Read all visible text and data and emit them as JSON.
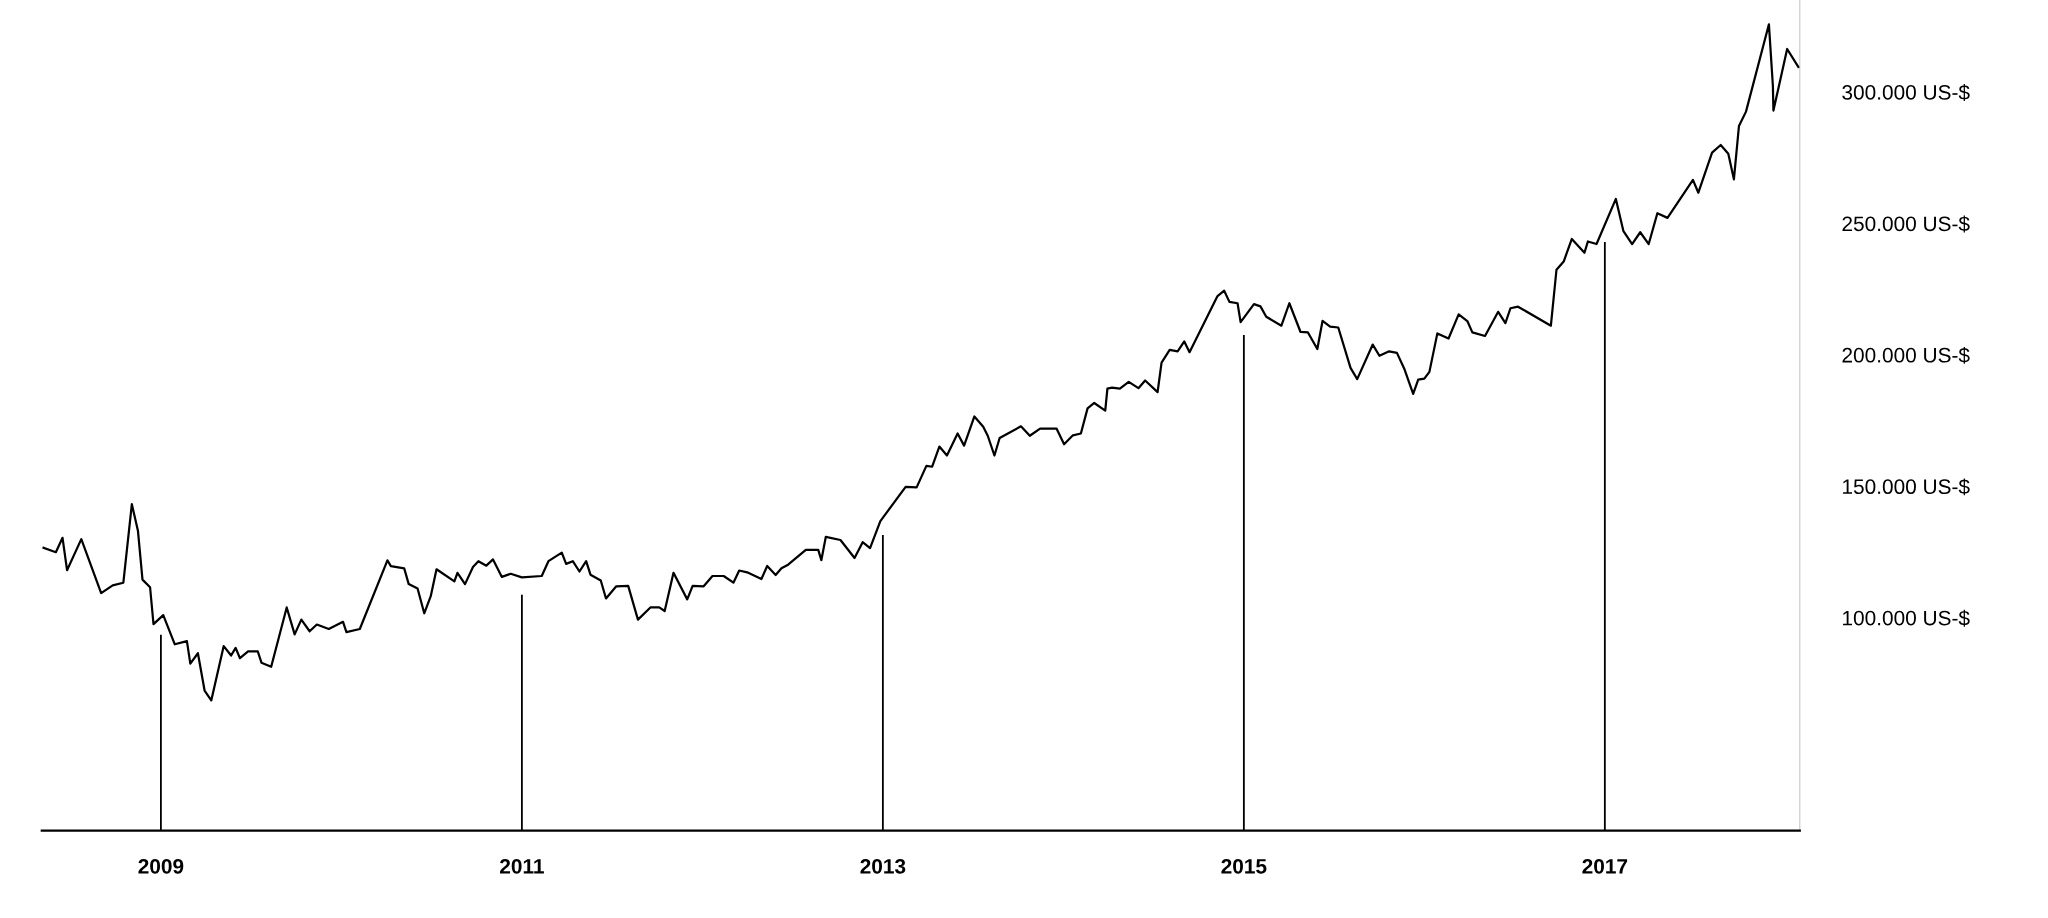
{
  "chart_data": {
    "type": "line",
    "x": [
      2008.35,
      2008.418,
      2008.455,
      2008.48,
      2008.559,
      2008.669,
      2008.733,
      2008.792,
      2008.839,
      2008.873,
      2008.898,
      2008.94,
      2008.959,
      2009.013,
      2009.077,
      2009.144,
      2009.163,
      2009.205,
      2009.242,
      2009.279,
      2009.348,
      2009.389,
      2009.414,
      2009.438,
      2009.483,
      2009.537,
      2009.557,
      2009.611,
      2009.697,
      2009.741,
      2009.778,
      2009.824,
      2009.864,
      2009.93,
      2010.009,
      2010.028,
      2010.102,
      2010.255,
      2010.274,
      2010.348,
      2010.373,
      2010.422,
      2010.459,
      2010.495,
      2010.527,
      2010.626,
      2010.643,
      2010.685,
      2010.729,
      2010.759,
      2010.803,
      2010.84,
      2010.889,
      2010.938,
      2011.0,
      2011.11,
      2011.147,
      2011.221,
      2011.245,
      2011.282,
      2011.319,
      2011.356,
      2011.38,
      2011.437,
      2011.466,
      2011.523,
      2011.589,
      2011.643,
      2011.712,
      2011.761,
      2011.791,
      2011.84,
      2011.916,
      2011.946,
      2012.007,
      2012.056,
      2012.118,
      2012.172,
      2012.204,
      2012.248,
      2012.327,
      2012.359,
      2012.406,
      2012.438,
      2012.475,
      2012.573,
      2012.642,
      2012.659,
      2012.684,
      2012.765,
      2012.843,
      2012.888,
      2012.929,
      2012.986,
      2013.126,
      2013.187,
      2013.241,
      2013.273,
      2013.313,
      2013.355,
      2013.414,
      2013.45,
      2013.507,
      2013.556,
      2013.581,
      2013.618,
      2013.647,
      2013.765,
      2013.814,
      2013.871,
      2013.962,
      2014.004,
      2014.053,
      2014.097,
      2014.134,
      2014.171,
      2014.232,
      2014.244,
      2014.269,
      2014.313,
      2014.362,
      2014.416,
      2014.453,
      2014.522,
      2014.544,
      2014.589,
      2014.633,
      2014.67,
      2014.699,
      2014.854,
      2014.891,
      2014.92,
      2014.965,
      2014.982,
      2015.056,
      2015.092,
      2015.124,
      2015.208,
      2015.252,
      2015.314,
      2015.355,
      2015.407,
      2015.436,
      2015.478,
      2015.523,
      2015.591,
      2015.628,
      2015.714,
      2015.751,
      2015.805,
      2015.848,
      2015.89,
      2015.938,
      2015.966,
      2016.0,
      2016.028,
      2016.072,
      2016.134,
      2016.19,
      2016.238,
      2016.266,
      2016.336,
      2016.409,
      2016.449,
      2016.477,
      2016.519,
      2016.701,
      2016.732,
      2016.772,
      2016.817,
      2016.887,
      2016.906,
      2016.954,
      2017.061,
      2017.103,
      2017.151,
      2017.196,
      2017.243,
      2017.291,
      2017.347,
      2017.488,
      2017.518,
      2017.594,
      2017.642,
      2017.684,
      2017.715,
      2017.743,
      2017.782,
      2017.909,
      2017.931,
      2017.934,
      2018.01,
      2018.072
    ],
    "series": [
      {
        "color": "#000000",
        "values": [
          126600,
          124920,
          130390,
          118080,
          129880,
          109370,
          112270,
          113300,
          143200,
          132950,
          114490,
          111590,
          97570,
          100990,
          89880,
          91080,
          82530,
          86470,
          72280,
          68520,
          89200,
          85610,
          88520,
          84590,
          87150,
          87150,
          82880,
          81340,
          103900,
          93640,
          99280,
          94840,
          97400,
          95700,
          98430,
          94500,
          95700,
          121840,
          119620,
          118770,
          112780,
          111080,
          101680,
          108170,
          118420,
          113810,
          117060,
          112780,
          119280,
          121500,
          119790,
          122180,
          115520,
          116720,
          115350,
          115860,
          121500,
          124750,
          120480,
          121500,
          117570,
          121500,
          116370,
          114150,
          107310,
          111930,
          112100,
          99280,
          103900,
          103900,
          102530,
          117060,
          106970,
          112100,
          111930,
          115860,
          115860,
          113330,
          117950,
          117260,
          114700,
          119660,
          116240,
          118800,
          120170,
          125810,
          125810,
          121880,
          130770,
          129570,
          122730,
          128720,
          126500,
          136750,
          149740,
          149570,
          157770,
          157430,
          165120,
          161700,
          170070,
          165460,
          176570,
          172640,
          169220,
          161700,
          168360,
          172810,
          169220,
          171950,
          171950,
          165970,
          169390,
          170070,
          179640,
          181690,
          178790,
          187160,
          187500,
          187160,
          189730,
          187330,
          190240,
          185800,
          197080,
          201860,
          201350,
          205110,
          201010,
          222370,
          224420,
          220150,
          219630,
          212460,
          219290,
          218440,
          214510,
          211090,
          219630,
          208700,
          208530,
          202200,
          212970,
          210750,
          210410,
          195020,
          190750,
          203910,
          199640,
          201350,
          200740,
          194490,
          185120,
          190590,
          190980,
          193520,
          208160,
          206210,
          215390,
          212850,
          208560,
          207190,
          216370,
          212070,
          217730,
          218320,
          211090,
          232380,
          235510,
          244100,
          238830,
          243130,
          242150,
          259330,
          247030,
          242150,
          246640,
          242150,
          253870,
          252110,
          266560,
          261680,
          276910,
          279840,
          276520,
          266760,
          287070,
          292530,
          325740,
          302300,
          292930,
          316360,
          309520
        ]
      }
    ],
    "xlim": [
      2008.34,
      2018.08
    ],
    "xticks": [
      2009,
      2011,
      2013,
      2015,
      2017
    ],
    "ylim": [
      19000,
      335000
    ],
    "yticks": [
      {
        "value": 100000,
        "label": "100.000 US-$"
      },
      {
        "value": 150000,
        "label": "150.000 US-$"
      },
      {
        "value": 200000,
        "label": "200.000 US-$"
      },
      {
        "value": 250000,
        "label": "250.000 US-$"
      },
      {
        "value": 300000,
        "label": "300.000 US-$"
      }
    ],
    "ref_lines": [
      {
        "axis": "x",
        "value": 2009,
        "color": "#000000"
      },
      {
        "axis": "x",
        "value": 2011,
        "color": "#000000"
      },
      {
        "axis": "x",
        "value": 2013,
        "color": "#000000"
      },
      {
        "axis": "x",
        "value": 2015,
        "color": "#000000"
      },
      {
        "axis": "x",
        "value": 2017,
        "color": "#000000"
      }
    ],
    "grid": false,
    "marker": "none",
    "line_style": "solid"
  }
}
